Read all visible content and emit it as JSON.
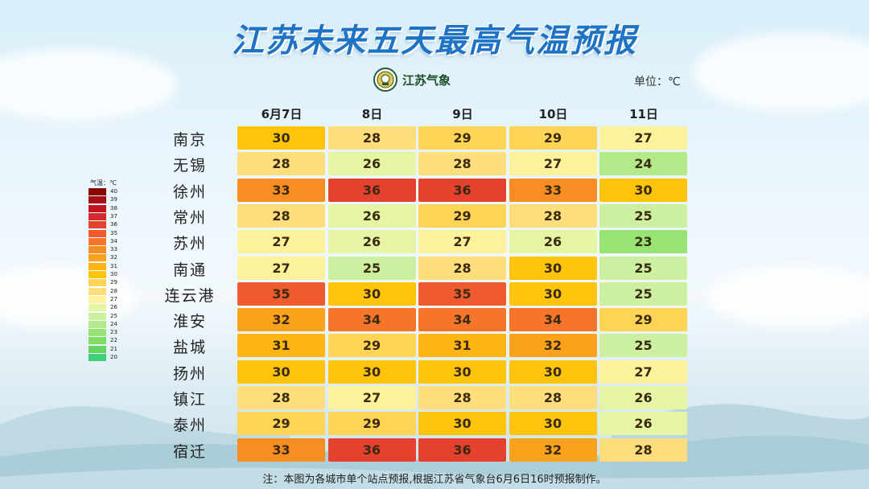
{
  "title": "江苏未来五天最高气温预报",
  "logo_text": "江苏气象",
  "unit": "单位：℃",
  "note": "注：本图为各城市单个站点预报,根据江苏省气象台6月6日16时预报制作。",
  "chart_data": {
    "type": "heatmap",
    "title": "江苏未来五天最高气温预报",
    "columns": [
      "6月7日",
      "8日",
      "9日",
      "10日",
      "11日"
    ],
    "rows": [
      "南京",
      "无锡",
      "徐州",
      "常州",
      "苏州",
      "南通",
      "连云港",
      "淮安",
      "盐城",
      "扬州",
      "镇江",
      "泰州",
      "宿迁"
    ],
    "values": [
      [
        30,
        28,
        29,
        29,
        27
      ],
      [
        28,
        26,
        28,
        27,
        24
      ],
      [
        33,
        36,
        36,
        33,
        30
      ],
      [
        28,
        26,
        29,
        28,
        25
      ],
      [
        27,
        26,
        27,
        26,
        23
      ],
      [
        27,
        25,
        28,
        30,
        25
      ],
      [
        35,
        30,
        35,
        30,
        25
      ],
      [
        32,
        34,
        34,
        34,
        29
      ],
      [
        31,
        29,
        31,
        32,
        25
      ],
      [
        30,
        30,
        30,
        30,
        27
      ],
      [
        28,
        27,
        28,
        28,
        26
      ],
      [
        29,
        29,
        30,
        30,
        26
      ],
      [
        33,
        36,
        36,
        32,
        28
      ]
    ],
    "legend": {
      "title": "气温：℃",
      "levels": [
        {
          "label": "40",
          "color": "#8b0000"
        },
        {
          "label": "39",
          "color": "#a50f15"
        },
        {
          "label": "38",
          "color": "#c0141e"
        },
        {
          "label": "37",
          "color": "#d42a2a"
        },
        {
          "label": "36",
          "color": "#e6412f"
        },
        {
          "label": "35",
          "color": "#f05a2f"
        },
        {
          "label": "34",
          "color": "#f5762a"
        },
        {
          "label": "33",
          "color": "#f88d22"
        },
        {
          "label": "32",
          "color": "#fba21c"
        },
        {
          "label": "31",
          "color": "#fdb514"
        },
        {
          "label": "30",
          "color": "#fec40c"
        },
        {
          "label": "29",
          "color": "#fed456"
        },
        {
          "label": "28",
          "color": "#fede7c"
        },
        {
          "label": "27",
          "color": "#fdf29b"
        },
        {
          "label": "26",
          "color": "#e6f5a3"
        },
        {
          "label": "25",
          "color": "#cdf0a0"
        },
        {
          "label": "24",
          "color": "#b2ea8a"
        },
        {
          "label": "23",
          "color": "#97e474"
        },
        {
          "label": "22",
          "color": "#7fdc66"
        },
        {
          "label": "21",
          "color": "#66d463"
        },
        {
          "label": "20",
          "color": "#3fcf78"
        }
      ]
    }
  }
}
